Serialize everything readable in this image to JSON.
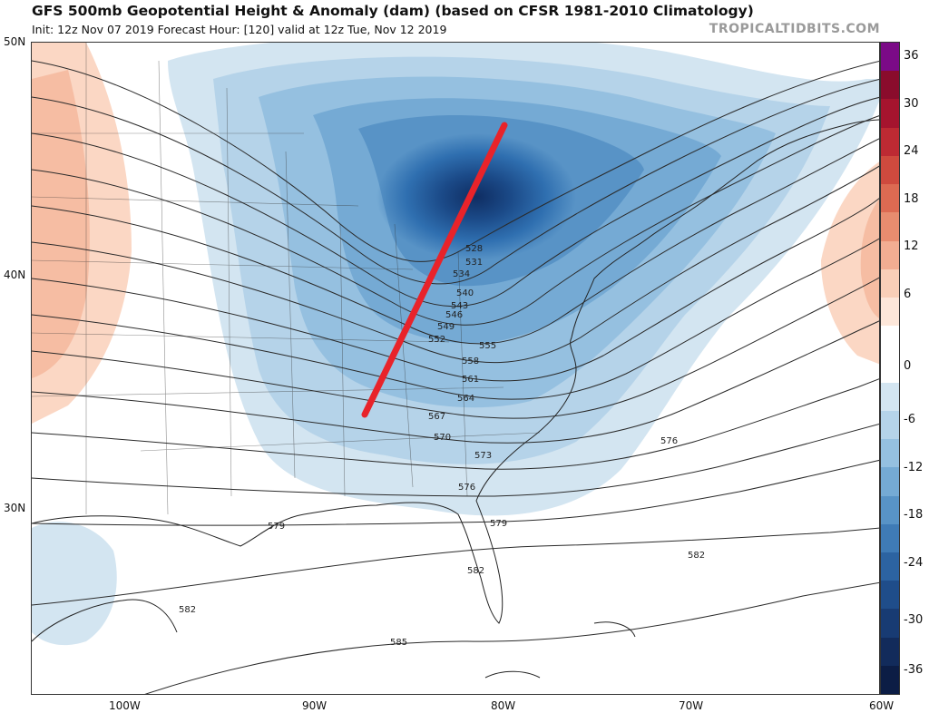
{
  "header": {
    "title": "GFS 500mb Geopotential Height & Anomaly (dam) (based on CFSR 1981-2010 Climatology)",
    "subtitle": "Init: 12z Nov 07 2019    Forecast Hour: [120]    valid at 12z Tue, Nov 12 2019",
    "brand": "TROPICALTIDBITS.COM"
  },
  "map": {
    "lat_labels": [
      "50N",
      "40N",
      "30N"
    ],
    "lon_labels": [
      "100W",
      "90W",
      "80W",
      "70W",
      "60W"
    ],
    "contour_labels": [
      "528",
      "531",
      "534",
      "540",
      "543",
      "546",
      "549",
      "552",
      "555",
      "558",
      "561",
      "564",
      "567",
      "570",
      "573",
      "576",
      "576",
      "579",
      "579",
      "582",
      "582",
      "582",
      "585"
    ],
    "annotation_color": "#e8232a"
  },
  "colorbar": {
    "labels": [
      "36",
      "30",
      "24",
      "18",
      "12",
      "6",
      "0",
      "-6",
      "-12",
      "-18",
      "-24",
      "-30",
      "-36"
    ],
    "colors": [
      "#7b0a87",
      "#8a0c2c",
      "#a5142e",
      "#bd2a33",
      "#cf4a3e",
      "#dd6a52",
      "#e88c6f",
      "#f2ad92",
      "#f9cfb8",
      "#fde7da",
      "#ffffff",
      "#ffffff",
      "#d3e5f1",
      "#b5d3e9",
      "#95c0e0",
      "#75aad4",
      "#5893c6",
      "#3f7bb6",
      "#2c63a1",
      "#1f4d8a",
      "#183b73",
      "#122b5b",
      "#0c1d45"
    ]
  }
}
